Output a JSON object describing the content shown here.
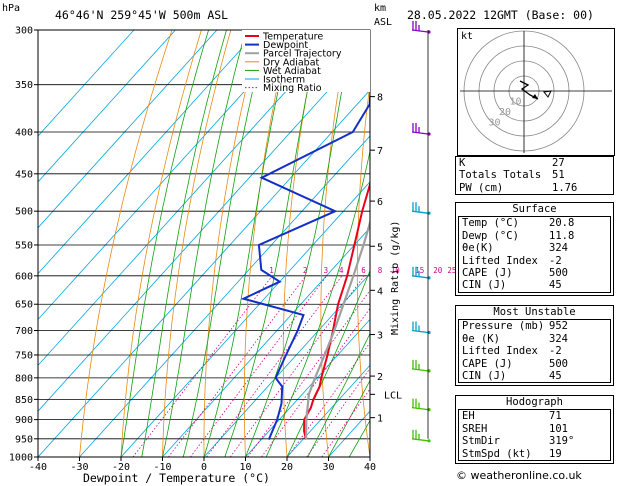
{
  "header": {
    "hpa_label": "hPa",
    "location": "46°46'N  259°45'W  500m  ASL",
    "km_label": "km",
    "asl_label": "ASL",
    "datetime": "28.05.2022  12GMT  (Base: 00)"
  },
  "chart_data": {
    "type": "line",
    "xlabel": "Dewpoint / Temperature (°C)",
    "ylabel": "hPa",
    "right_axis_label": "Mixing Ratio (g/kg)",
    "xlim": [
      -40,
      40
    ],
    "ylim": [
      1000,
      300
    ],
    "x_ticks": [
      "-40",
      "-30",
      "-20",
      "-10",
      "0",
      "10",
      "20",
      "30",
      "40"
    ],
    "pressure_levels": [
      300,
      350,
      400,
      450,
      500,
      550,
      600,
      650,
      700,
      750,
      800,
      850,
      900,
      950,
      1000
    ],
    "km_ticks": [
      {
        "label": "8",
        "p": 362
      },
      {
        "label": "7",
        "p": 421
      },
      {
        "label": "6",
        "p": 486
      },
      {
        "label": "5",
        "p": 552
      },
      {
        "label": "4",
        "p": 625
      },
      {
        "label": "3",
        "p": 708
      },
      {
        "label": "2",
        "p": 796
      },
      {
        "label": "1",
        "p": 895
      }
    ],
    "lcl": {
      "label": "LCL",
      "p": 838
    },
    "mixing_ratio_labels": [
      "1",
      "2",
      "3",
      "4",
      "6",
      "8",
      "10",
      "15",
      "20",
      "25"
    ],
    "mixing_ratio_values": [
      1,
      2,
      3,
      4,
      6,
      8,
      10,
      15,
      20,
      25
    ],
    "legend": [
      "Temperature",
      "Dewpoint",
      "Parcel Trajectory",
      "Dry Adiabat",
      "Wet Adiabat",
      "Isotherm",
      "Mixing Ratio"
    ],
    "series": [
      {
        "name": "Temperature",
        "color": "#e8001c",
        "points": [
          [
            952,
            20.8
          ],
          [
            930,
            18.5
          ],
          [
            900,
            16.0
          ],
          [
            870,
            15.0
          ],
          [
            850,
            13.8
          ],
          [
            820,
            12.5
          ],
          [
            800,
            11.0
          ],
          [
            750,
            7.5
          ],
          [
            700,
            3.5
          ],
          [
            650,
            -1.0
          ],
          [
            600,
            -5.0
          ],
          [
            550,
            -10.0
          ],
          [
            500,
            -15.5
          ],
          [
            450,
            -21.0
          ],
          [
            400,
            -28.0
          ],
          [
            350,
            -36.0
          ],
          [
            300,
            -44.0
          ]
        ]
      },
      {
        "name": "Dewpoint",
        "color": "#1230c8",
        "points": [
          [
            952,
            11.8
          ],
          [
            900,
            9.5
          ],
          [
            860,
            7.0
          ],
          [
            820,
            3.5
          ],
          [
            800,
            0.0
          ],
          [
            750,
            -2.5
          ],
          [
            700,
            -5.0
          ],
          [
            670,
            -7.0
          ],
          [
            640,
            -25.0
          ],
          [
            610,
            -20.0
          ],
          [
            590,
            -27.0
          ],
          [
            550,
            -33.0
          ],
          [
            500,
            -22.0
          ],
          [
            455,
            -47.0
          ],
          [
            400,
            -35.0
          ],
          [
            370,
            -37.0
          ],
          [
            340,
            -43.0
          ],
          [
            300,
            -46.0
          ]
        ]
      },
      {
        "name": "Parcel Trajectory",
        "color": "#a0a0a0",
        "points": [
          [
            952,
            20.8
          ],
          [
            900,
            16.5
          ],
          [
            838,
            11.6
          ],
          [
            800,
            9.5
          ],
          [
            750,
            6.8
          ],
          [
            700,
            3.8
          ],
          [
            650,
            0.3
          ],
          [
            600,
            -3.5
          ],
          [
            550,
            -7.8
          ],
          [
            500,
            -12.8
          ],
          [
            450,
            -18.5
          ],
          [
            400,
            -25.0
          ],
          [
            350,
            -33.0
          ],
          [
            300,
            -42.0
          ]
        ]
      }
    ],
    "wind_barbs": [
      {
        "p": 300,
        "color": "#8a00c8"
      },
      {
        "p": 400,
        "color": "#8a00c8"
      },
      {
        "p": 500,
        "color": "#00a0c8"
      },
      {
        "p": 600,
        "color": "#00a0c8"
      },
      {
        "p": 700,
        "color": "#00a0c8"
      },
      {
        "p": 780,
        "color": "#40c000"
      },
      {
        "p": 870,
        "color": "#40c000"
      },
      {
        "p": 950,
        "color": "#40c000"
      }
    ],
    "hodograph": {
      "label": "kt",
      "ring_labels": [
        "10",
        "20",
        "30"
      ]
    }
  },
  "indices": {
    "rows": [
      {
        "k": "K",
        "v": "27"
      },
      {
        "k": "Totals Totals",
        "v": "51"
      },
      {
        "k": "PW (cm)",
        "v": "1.76"
      }
    ]
  },
  "surface": {
    "title": "Surface",
    "rows": [
      {
        "k": "Temp (°C)",
        "v": "20.8"
      },
      {
        "k": "Dewp (°C)",
        "v": "11.8"
      },
      {
        "k": "θe(K)",
        "v": "324"
      },
      {
        "k": "Lifted Index",
        "v": "-2"
      },
      {
        "k": "CAPE (J)",
        "v": "500"
      },
      {
        "k": "CIN (J)",
        "v": "45"
      }
    ]
  },
  "unstable": {
    "title": "Most Unstable",
    "rows": [
      {
        "k": "Pressure (mb)",
        "v": "952"
      },
      {
        "k": "θe (K)",
        "v": "324"
      },
      {
        "k": "Lifted Index",
        "v": "-2"
      },
      {
        "k": "CAPE (J)",
        "v": "500"
      },
      {
        "k": "CIN (J)",
        "v": "45"
      }
    ]
  },
  "hodo_table": {
    "title": "Hodograph",
    "rows": [
      {
        "k": "EH",
        "v": "71"
      },
      {
        "k": "SREH",
        "v": "101"
      },
      {
        "k": "StmDir",
        "v": "319°"
      },
      {
        "k": "StmSpd (kt)",
        "v": "19"
      }
    ]
  },
  "credit": "© weatheronline.co.uk",
  "colors": {
    "isotherm": "#00a6e0",
    "dry_adiabat": "#e88a10",
    "wet_adiabat": "#10a010",
    "mixing_ratio": "#d0008a"
  }
}
